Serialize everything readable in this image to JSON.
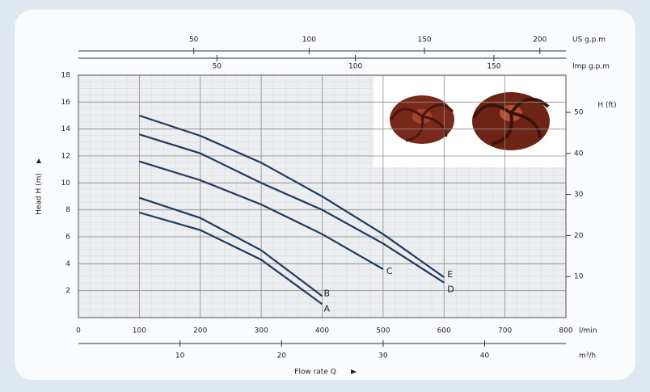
{
  "chart_data": {
    "type": "line",
    "x": [
      100,
      200,
      300,
      400,
      500,
      600
    ],
    "xlim": [
      0,
      800
    ],
    "xticks": [
      0,
      100,
      200,
      300,
      400,
      500,
      600,
      700,
      800
    ],
    "xlabel_unit": "l/min",
    "ylim": [
      0,
      18
    ],
    "yticks": [
      2,
      4,
      6,
      8,
      10,
      12,
      14,
      16,
      18
    ],
    "ylabel": "Head H (m)",
    "y2lim": [
      0,
      59.06
    ],
    "y2ticks": [
      10,
      20,
      30,
      40,
      50
    ],
    "y2label": "H (ft)",
    "top_axes": [
      {
        "label": "US g.p.m",
        "xlim": [
          0,
          211.3
        ],
        "xticks": [
          50,
          100,
          150,
          200
        ]
      },
      {
        "label": "Imp g.p.m",
        "xlim": [
          0,
          176
        ],
        "xticks": [
          50,
          100,
          150
        ]
      }
    ],
    "bottom_axis2": {
      "label": "m³/h",
      "xlim": [
        0,
        48
      ],
      "xticks": [
        10,
        20,
        30,
        40
      ]
    },
    "xlabel": "Flow rate Q",
    "grid": true,
    "series": [
      {
        "name": "A",
        "color": "#1f3a5f",
        "values": [
          7.8,
          6.5,
          4.3,
          1.0,
          null,
          null
        ]
      },
      {
        "name": "B",
        "color": "#1f3a5f",
        "values": [
          8.9,
          7.4,
          5.0,
          1.6,
          null,
          null
        ]
      },
      {
        "name": "C",
        "color": "#1f3a5f",
        "values": [
          11.6,
          10.2,
          8.4,
          6.2,
          3.6,
          null
        ]
      },
      {
        "name": "D",
        "color": "#1f3a5f",
        "values": [
          13.6,
          12.2,
          10.0,
          8.0,
          5.5,
          2.6
        ]
      },
      {
        "name": "E",
        "color": "#1f3a5f",
        "values": [
          15.0,
          13.5,
          11.5,
          9.0,
          6.2,
          3.0
        ]
      }
    ]
  }
}
